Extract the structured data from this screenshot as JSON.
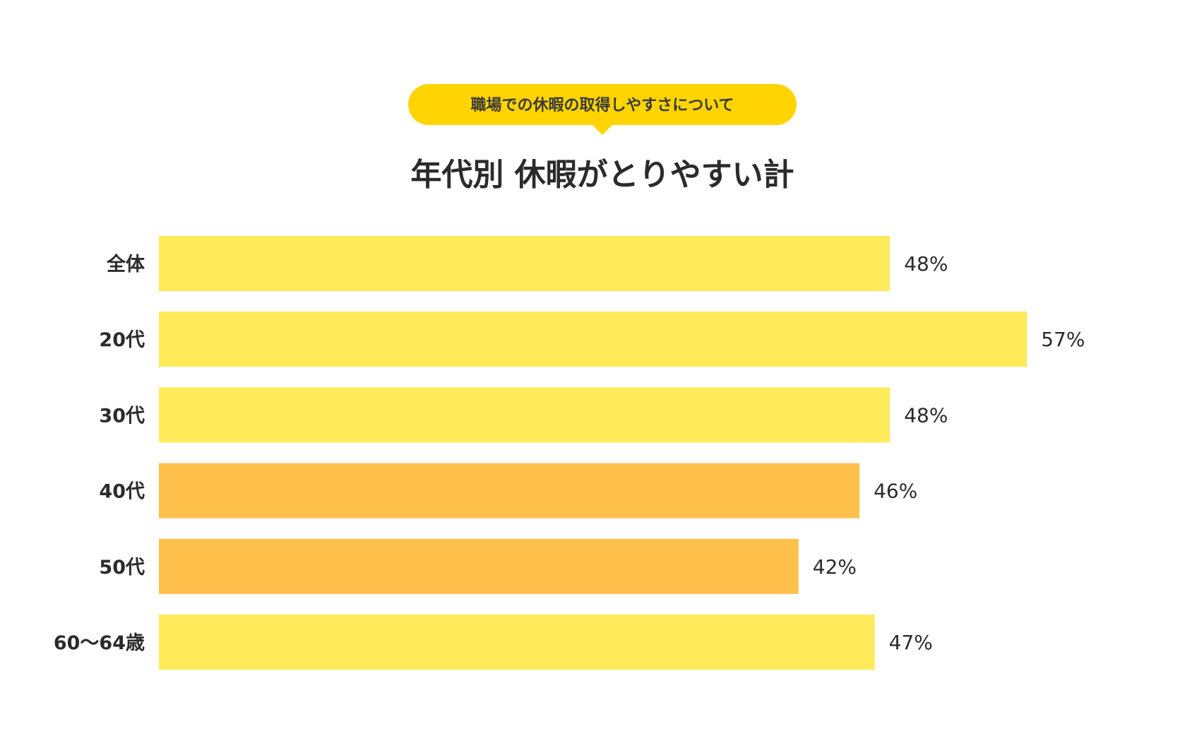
{
  "chart_data": {
    "type": "bar",
    "orientation": "horizontal",
    "subtitle": "職場での休暇の取得しやすさについて",
    "title": "年代別 休暇がとりやすい計",
    "categories": [
      "全体",
      "20代",
      "30代",
      "40代",
      "50代",
      "60～64歳"
    ],
    "values": [
      48,
      57,
      48,
      46,
      42,
      47
    ],
    "value_labels": [
      "48%",
      "57%",
      "48%",
      "46%",
      "42%",
      "47%"
    ],
    "unit": "%",
    "xlim": [
      0,
      60
    ],
    "grid": false,
    "legend": "none"
  },
  "colors": {
    "badge": "#FFD400",
    "bar_default": "#FFEA5A",
    "bar_highlight": "#FEC04A",
    "highlight_categories": [
      "40代",
      "50代"
    ],
    "text": "#2b2b2b"
  }
}
